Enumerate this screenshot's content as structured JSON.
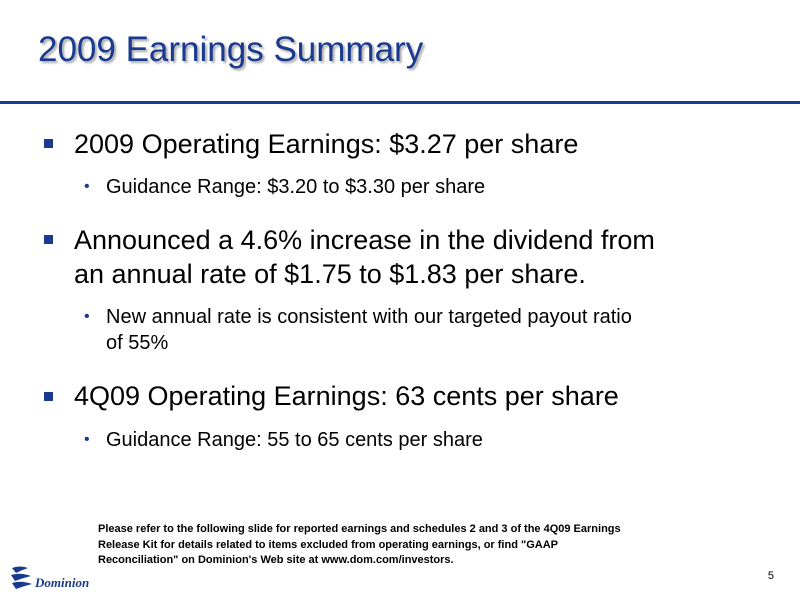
{
  "slide": {
    "title": "2009 Earnings Summary",
    "page_number": "5"
  },
  "bullets": [
    {
      "lines": [
        "2009 Operating Earnings:  $3.27 per share"
      ],
      "sub": [
        {
          "lines": [
            "Guidance Range: $3.20 to $3.30 per share"
          ]
        }
      ]
    },
    {
      "lines": [
        "Announced a 4.6% increase in the dividend from",
        "an annual rate of $1.75 to $1.83 per share."
      ],
      "sub": [
        {
          "lines": [
            "New annual rate is consistent with our targeted payout ratio",
            "of 55%"
          ]
        }
      ]
    },
    {
      "lines": [
        "4Q09 Operating Earnings:  63 cents per share"
      ],
      "sub": [
        {
          "lines": [
            "Guidance Range: 55 to 65 cents per share"
          ]
        }
      ]
    }
  ],
  "footnote": {
    "lines": [
      "Please refer to the following slide for reported earnings and schedules 2 and 3 of the 4Q09 Earnings",
      "Release Kit for details related to items excluded from operating earnings, or find \"GAAP",
      "Reconciliation\" on Dominion's Web site at www.dom.com/investors."
    ]
  },
  "logo": {
    "text": "Dominion",
    "icon": "dominion-logo-icon"
  },
  "colors": {
    "accent": "#1a3a8f",
    "title_shadow": "#a8a8a8",
    "text": "#000000"
  }
}
